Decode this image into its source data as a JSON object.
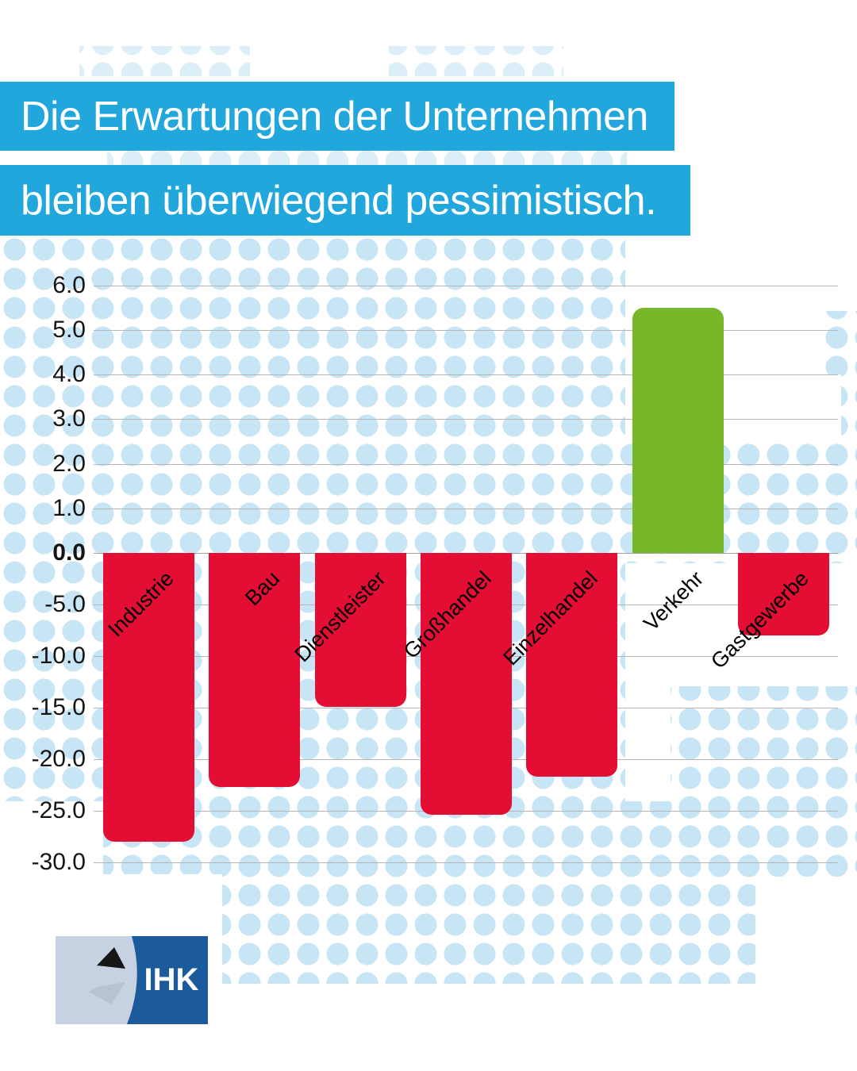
{
  "header": {
    "line1": "Die Erwartungen der Unternehmen",
    "line2": "bleiben überwiegend pessimistisch."
  },
  "chart_data": {
    "type": "bar",
    "title": "Die Erwartungen der Unternehmen bleiben überwiegend pessimistisch.",
    "categories": [
      "Industrie",
      "Bau",
      "Dienstleister",
      "Großhandel",
      "Einzelhandel",
      "Verkehr",
      "Gastgewerbe"
    ],
    "values": [
      -28.0,
      -22.7,
      -14.9,
      -25.4,
      -21.7,
      5.5,
      -8.0
    ],
    "bar_colors": [
      "#e40d33",
      "#e40d33",
      "#e40d33",
      "#e40d33",
      "#e40d33",
      "#76b82a",
      "#e40d33"
    ],
    "yticks": [
      {
        "label": "6.0",
        "value": 6
      },
      {
        "label": "5.0",
        "value": 5
      },
      {
        "label": "4.0",
        "value": 4
      },
      {
        "label": "3.0",
        "value": 3
      },
      {
        "label": "2.0",
        "value": 2
      },
      {
        "label": "1.0",
        "value": 1
      },
      {
        "label": "0.0",
        "value": 0
      },
      {
        "label": "-5.0",
        "value": -5
      },
      {
        "label": "-10.0",
        "value": -10
      },
      {
        "label": "-15.0",
        "value": -15
      },
      {
        "label": "-20.0",
        "value": -20
      },
      {
        "label": "-25.0",
        "value": -25
      },
      {
        "label": "-30.0",
        "value": -30
      }
    ],
    "ylim_above_zero": [
      0,
      6
    ],
    "ylim_below_zero": [
      -30,
      0
    ],
    "xlabel": "",
    "ylabel": "",
    "grid": true,
    "legend": "none"
  },
  "colors": {
    "banner_blue": "#21a7db",
    "bar_negative": "#e40d33",
    "bar_positive": "#76b82a",
    "dot_light": "#dceff9",
    "dot_base": "#c7e5f4",
    "grid_line": "#b5b5b5",
    "logo_panel_light": "#c6d2e1",
    "logo_panel_blue": "#1b5a9b"
  },
  "logo": {
    "text": "IHK"
  }
}
